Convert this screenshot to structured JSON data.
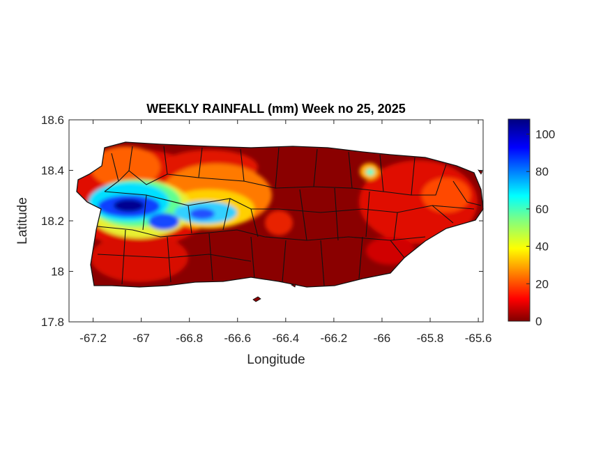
{
  "chart_data": {
    "type": "heatmap",
    "title": "WEEKLY RAINFALL (mm) Week no 25, 2025",
    "xlabel": "Longitude",
    "ylabel": "Latitude",
    "xlim": [
      -67.3,
      -65.58
    ],
    "ylim": [
      17.8,
      18.6
    ],
    "xticks": [
      -67.2,
      -67,
      -66.8,
      -66.6,
      -66.4,
      -66.2,
      -66,
      -65.8,
      -65.6
    ],
    "xtick_labels": [
      "-67.2",
      "-67",
      "-66.8",
      "-66.6",
      "-66.4",
      "-66.2",
      "-66",
      "-65.8",
      "-65.6"
    ],
    "yticks": [
      17.8,
      18,
      18.2,
      18.4,
      18.6
    ],
    "ytick_labels": [
      "17.8",
      "18",
      "18.2",
      "18.4",
      "18.6"
    ],
    "colorbar": {
      "colormap": "jet",
      "range": [
        0,
        108
      ],
      "ticks": [
        0,
        20,
        40,
        60,
        80,
        100
      ],
      "tick_labels": [
        "0",
        "20",
        "40",
        "60",
        "80",
        "100"
      ]
    },
    "rain_hotspots": [
      {
        "lon": -67.05,
        "lat": 18.25,
        "value": 105
      },
      {
        "lon": -66.92,
        "lat": 18.18,
        "value": 95
      },
      {
        "lon": -66.76,
        "lat": 18.23,
        "value": 88
      },
      {
        "lon": -67.16,
        "lat": 18.34,
        "value": 60
      },
      {
        "lon": -66.04,
        "lat": 18.38,
        "value": 40
      }
    ],
    "background_value": 3
  }
}
